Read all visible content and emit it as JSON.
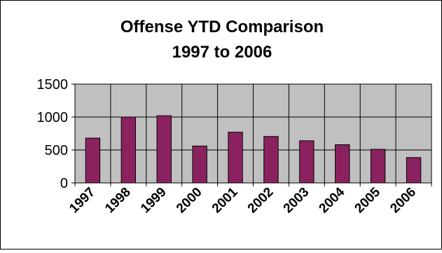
{
  "chart_data": {
    "type": "bar",
    "title_line1": "Offense YTD Comparison",
    "title_line2": "1997 to 2006",
    "categories": [
      "1997",
      "1998",
      "1999",
      "2000",
      "2001",
      "2002",
      "2003",
      "2004",
      "2005",
      "2006"
    ],
    "values": [
      680,
      1000,
      1020,
      560,
      770,
      705,
      640,
      580,
      510,
      385
    ],
    "ylim": [
      0,
      1500
    ],
    "yticks": [
      "0",
      "500",
      "1000",
      "1500"
    ],
    "grid": true,
    "legend": "none",
    "colors": {
      "bar": "#8B2260",
      "plot_background": "#C0C0C0",
      "frame": "#000000"
    }
  }
}
